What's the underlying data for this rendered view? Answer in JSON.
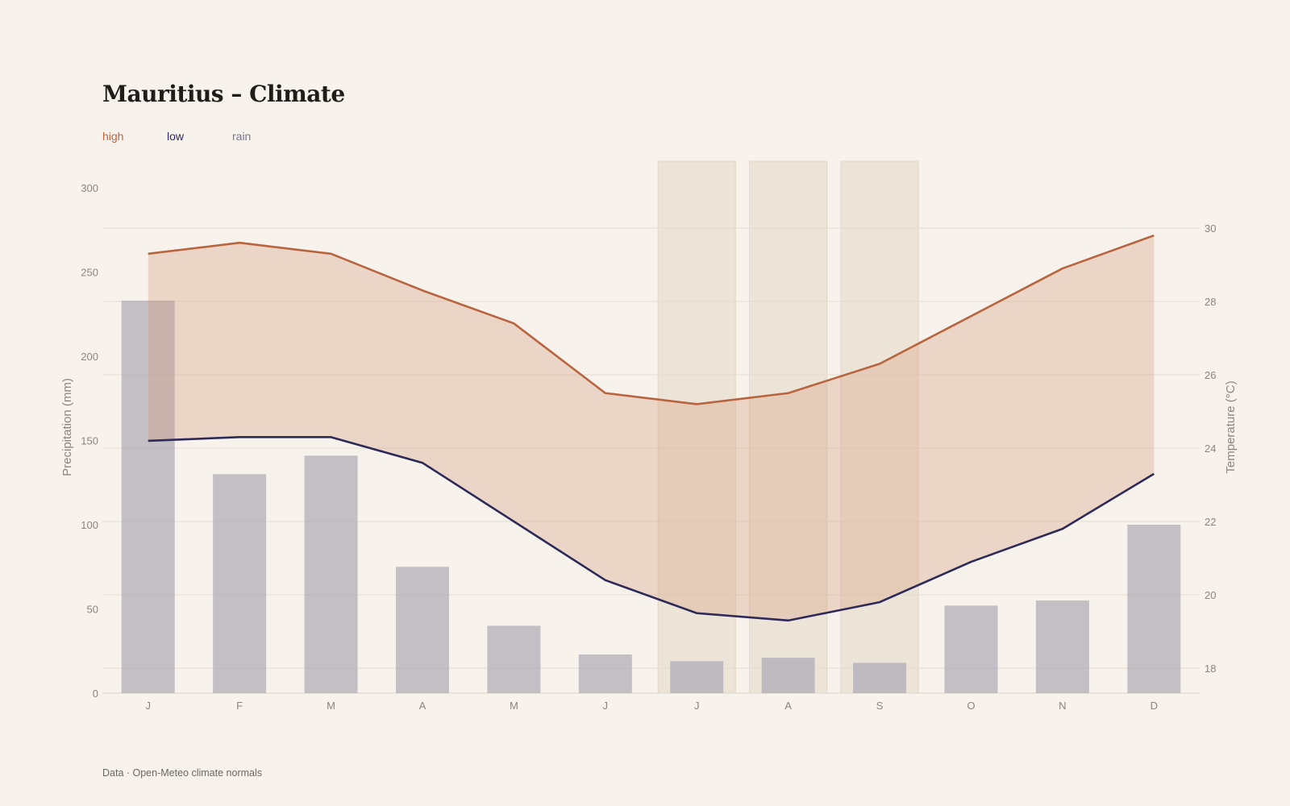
{
  "colors": {
    "background": "#f7f2ec",
    "high": "#b8653f",
    "low": "#2d2a5a",
    "rain": "#7a7690",
    "rain_bar": "#c2bfc6",
    "band_fill": "#d59a78",
    "highlight": "#ece3d6"
  },
  "legend": {
    "high": "high",
    "low": "low",
    "rain": "rain"
  },
  "footer": "Data · Open-Meteo climate normals",
  "chart_data": {
    "type": "bar",
    "title": "Mauritius – Climate",
    "categories": [
      "J",
      "F",
      "M",
      "A",
      "M",
      "J",
      "J",
      "A",
      "S",
      "O",
      "N",
      "D"
    ],
    "highlighted_months": [
      6,
      7,
      8
    ],
    "y_left": {
      "label": "Precipitation (mm)",
      "range": [
        0,
        300
      ],
      "ticks": [
        0,
        50,
        100,
        150,
        200,
        250,
        300
      ]
    },
    "y_right": {
      "label": "Temperature (°C)",
      "range": [
        17.3,
        31.5
      ],
      "ticks": [
        18,
        20,
        22,
        24,
        26,
        28,
        30
      ]
    },
    "grid": true,
    "series": [
      {
        "name": "rain",
        "type": "bar",
        "axis": "left",
        "values": [
          233,
          130,
          141,
          75,
          40,
          23,
          19,
          21,
          18,
          52,
          55,
          100
        ]
      },
      {
        "name": "high",
        "type": "line",
        "axis": "right",
        "values": [
          29.3,
          29.6,
          29.3,
          28.3,
          27.4,
          25.5,
          25.2,
          25.5,
          26.3,
          27.6,
          28.9,
          29.8
        ]
      },
      {
        "name": "low",
        "type": "line",
        "axis": "right",
        "values": [
          24.2,
          24.3,
          24.3,
          23.6,
          22.0,
          20.4,
          19.5,
          19.3,
          19.8,
          20.9,
          21.8,
          23.3
        ]
      }
    ]
  }
}
